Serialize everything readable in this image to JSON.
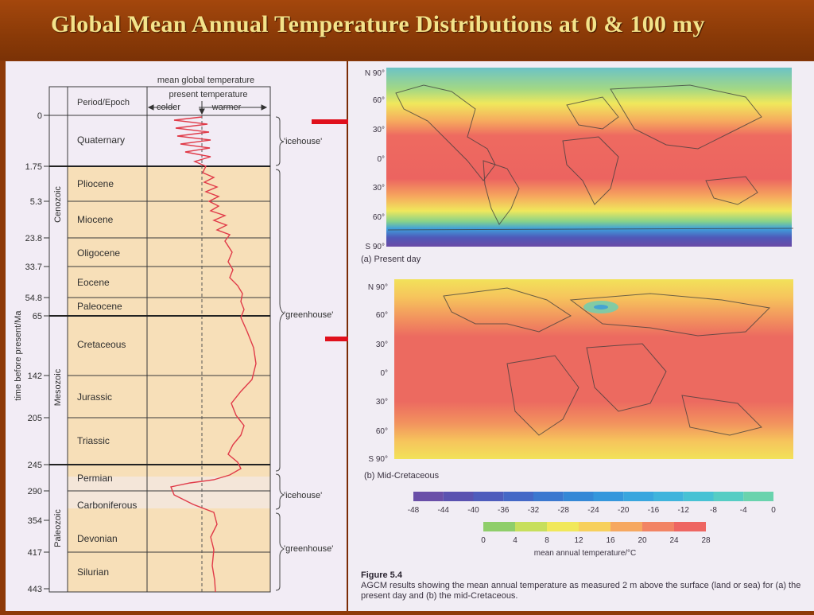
{
  "slide_title": "Global Mean Annual Temperature Distributions at 0 & 100 my",
  "timeline": {
    "header_title": "mean global temperature",
    "present_label": "present temperature",
    "colder_label": "colder",
    "warmer_label": "warmer",
    "column_header": "Period/Epoch",
    "y_axis_label": "time before present/Ma",
    "eras": [
      "Cenozoic",
      "Mesozoic",
      "Paleozoic"
    ],
    "ticks": [
      "0",
      "1.75",
      "5.3",
      "23.8",
      "33.7",
      "54.8",
      "65",
      "142",
      "205",
      "245",
      "290",
      "354",
      "417",
      "443"
    ],
    "periods": [
      "Quaternary",
      "Pliocene",
      "Miocene",
      "Oligocene",
      "Eocene",
      "Paleocene",
      "Cretaceous",
      "Jurassic",
      "Triassic",
      "Permian",
      "Carboniferous",
      "Devonian",
      "Silurian"
    ],
    "regimes": [
      "'icehouse'",
      "'greenhouse'",
      "'icehouse'",
      "'greenhouse'"
    ]
  },
  "maps": {
    "lat_labels_a": [
      "N 90°",
      "60°",
      "30°",
      "0°",
      "30°",
      "60°",
      "S 90°"
    ],
    "lat_labels_b": [
      "N 90°",
      "60°",
      "30°",
      "0°",
      "30°",
      "60°",
      "S 90°"
    ],
    "label_a": "(a) Present day",
    "label_b": "(b) Mid-Cretaceous"
  },
  "legend": {
    "cold_ticks": [
      "-48",
      "-44",
      "-40",
      "-36",
      "-32",
      "-28",
      "-24",
      "-20",
      "-16",
      "-12",
      "-8",
      "-4",
      "0"
    ],
    "warm_ticks": [
      "0",
      "4",
      "8",
      "12",
      "16",
      "20",
      "24",
      "28"
    ],
    "title": "mean annual temperature/°C",
    "cold_colors": [
      "#6a4fa8",
      "#5a52b0",
      "#4e5cbc",
      "#4468c6",
      "#3b78cf",
      "#3588d6",
      "#3597dc",
      "#39a6de",
      "#3fb4dc",
      "#47c2d4",
      "#56cdc4",
      "#6ad3ad"
    ],
    "warm_colors": [
      "#8fce6a",
      "#c7df5c",
      "#f1e85a",
      "#f7d05c",
      "#f6a860",
      "#f28464",
      "#ee6662"
    ]
  },
  "figure_caption": {
    "label": "Figure 5.4",
    "text": "AGCM results showing the mean annual temperature as measured 2 m above the surface (land or sea) for (a) the present day and (b) the mid-Cretaceous."
  }
}
